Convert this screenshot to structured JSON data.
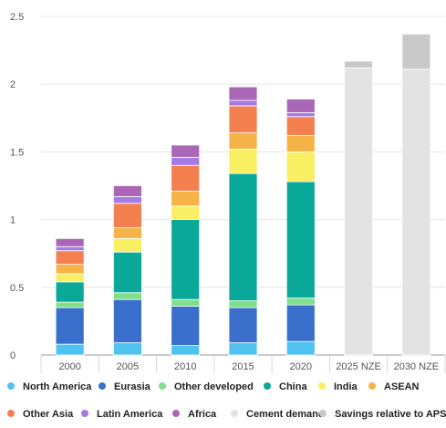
{
  "chart_data": {
    "type": "bar",
    "stacked": true,
    "categories": [
      "2000",
      "2005",
      "2010",
      "2015",
      "2020",
      "2025 NZE",
      "2030 NZE"
    ],
    "ylim": [
      0,
      2.5
    ],
    "yticks": [
      "0",
      "0.5",
      "1",
      "1.5",
      "2",
      "2.5"
    ],
    "yticks_values": [
      0,
      0.5,
      1,
      1.5,
      2,
      2.5
    ],
    "grid": "horizontal",
    "legend_position": "bottom",
    "series": [
      {
        "name": "North America",
        "color": "#4fc3ef",
        "values": [
          0.08,
          0.09,
          0.07,
          0.09,
          0.1,
          0,
          0
        ]
      },
      {
        "name": "Eurasia",
        "color": "#3b6fcc",
        "values": [
          0.27,
          0.32,
          0.29,
          0.26,
          0.27,
          0,
          0
        ]
      },
      {
        "name": "Other developed",
        "color": "#7fe08a",
        "values": [
          0.04,
          0.05,
          0.05,
          0.05,
          0.05,
          0,
          0
        ]
      },
      {
        "name": "China",
        "color": "#0aa898",
        "values": [
          0.15,
          0.3,
          0.59,
          0.94,
          0.86,
          0,
          0
        ]
      },
      {
        "name": "India",
        "color": "#f8ef62",
        "values": [
          0.06,
          0.1,
          0.1,
          0.18,
          0.22,
          0,
          0
        ]
      },
      {
        "name": "ASEAN",
        "color": "#f6b347",
        "values": [
          0.07,
          0.08,
          0.11,
          0.12,
          0.12,
          0,
          0
        ]
      },
      {
        "name": "Other Asia",
        "color": "#f47f4f",
        "values": [
          0.1,
          0.18,
          0.19,
          0.2,
          0.14,
          0,
          0
        ]
      },
      {
        "name": "Latin America",
        "color": "#a57be3",
        "values": [
          0.03,
          0.05,
          0.06,
          0.04,
          0.03,
          0,
          0
        ]
      },
      {
        "name": "Africa",
        "color": "#aa67b7",
        "values": [
          0.06,
          0.08,
          0.09,
          0.1,
          0.1,
          0,
          0
        ]
      },
      {
        "name": "Cement demand",
        "color": "#e3e3e3",
        "values": [
          0,
          0,
          0,
          0,
          0,
          2.12,
          2.11
        ]
      },
      {
        "name": "Savings relative to APS",
        "color": "#c9c9c9",
        "values": [
          0,
          0,
          0,
          0,
          0,
          0.05,
          0.26
        ]
      }
    ]
  }
}
